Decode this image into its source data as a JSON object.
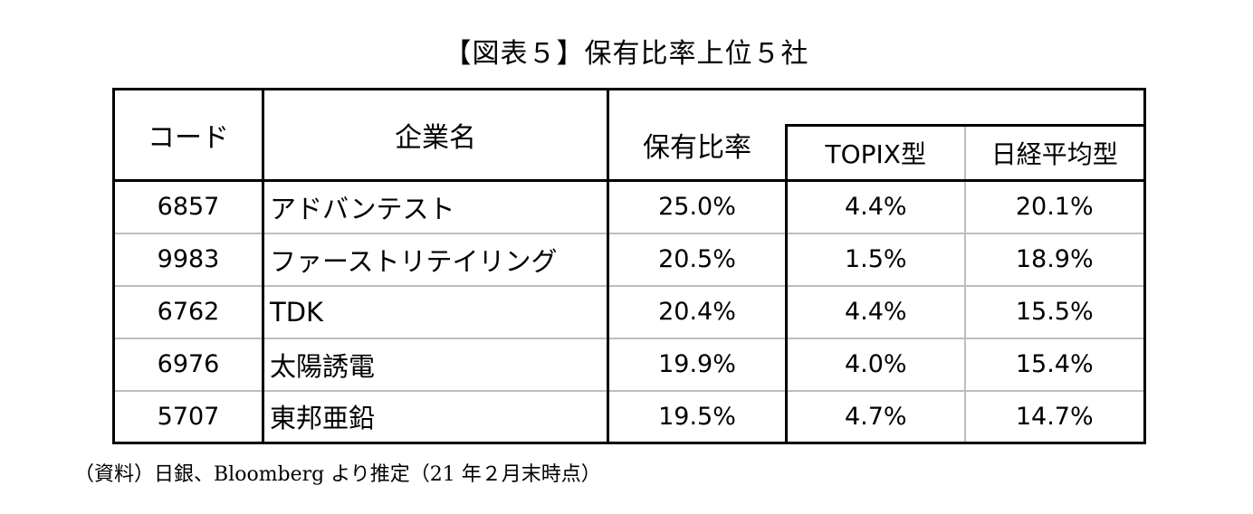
{
  "title": "【図表５】保有比率上位５社",
  "table": {
    "headers": {
      "code": "コード",
      "company": "企業名",
      "ratio": "保有比率",
      "topix": "TOPIX型",
      "nikkei": "日経平均型"
    },
    "rows": [
      {
        "code": "6857",
        "company": "アドバンテスト",
        "ratio": "25.0%",
        "topix": "4.4%",
        "nikkei": "20.1%"
      },
      {
        "code": "9983",
        "company": "ファーストリテイリング",
        "ratio": "20.5%",
        "topix": "1.5%",
        "nikkei": "18.9%"
      },
      {
        "code": "6762",
        "company": "TDK",
        "ratio": "20.4%",
        "topix": "4.4%",
        "nikkei": "15.5%"
      },
      {
        "code": "6976",
        "company": "太陽誘電",
        "ratio": "19.9%",
        "topix": "4.0%",
        "nikkei": "15.4%"
      },
      {
        "code": "5707",
        "company": "東邦亜鉛",
        "ratio": "19.5%",
        "topix": "4.7%",
        "nikkei": "14.7%"
      }
    ]
  },
  "source": "（資料）日銀、Bloomberg より推定（21 年２月末時点）"
}
